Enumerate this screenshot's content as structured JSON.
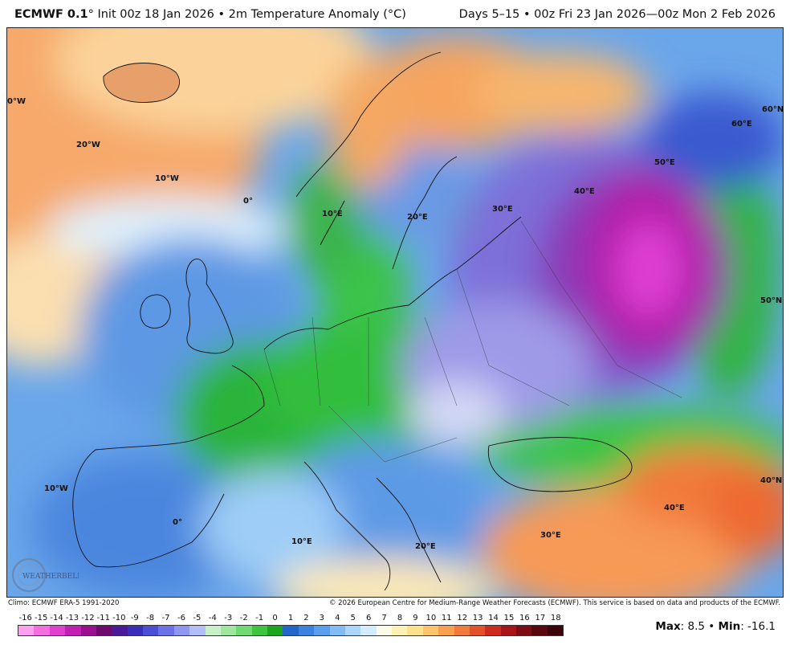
{
  "header": {
    "model": "ECMWF 0.1",
    "init_text": "° Init 00z 18 Jan 2026 • 2m Temperature Anomaly (°C)",
    "valid_text": "Days 5–15 • 00z Fri 23 Jan 2026—00z Mon 2 Feb 2026"
  },
  "map_labels": {
    "lon_0_w": "0°W",
    "lon_20_w": "20°W",
    "lon_10_w": "10°W",
    "lon_0": "0°",
    "lon_10_e": "10°E",
    "lon_20_e": "20°E",
    "lon_30_e": "30°E",
    "lon_40_e": "40°E",
    "lon_50_e": "50°E",
    "lon_60_e": "60°E",
    "lat_60_n": "60°N",
    "lat_50_n": "50°N",
    "lat_40_n": "40°N",
    "lon_10_w_south": "10°W",
    "lon_0_south": "0°",
    "lon_10_e_south": "10°E",
    "lon_20_e_south": "20°E",
    "lon_30_e_south": "30°E",
    "lon_40_e_south": "40°E"
  },
  "footer": {
    "climo": "Climo: ECMWF ERA-5 1991-2020",
    "copyright": "© 2026 European Centre for Medium-Range Weather Forecasts (ECMWF). This service is based on data and products of the ECMWF."
  },
  "colorbar": {
    "ticks": [
      "-16",
      "-15",
      "-14",
      "-13",
      "-12",
      "-11",
      "-10",
      "-9",
      "-8",
      "-7",
      "-6",
      "-5",
      "-4",
      "-3",
      "-2",
      "-1",
      "0",
      "1",
      "2",
      "3",
      "4",
      "5",
      "6",
      "7",
      "8",
      "9",
      "10",
      "11",
      "12",
      "13",
      "14",
      "15",
      "16",
      "17",
      "18"
    ],
    "colors": [
      "#ff9ff0",
      "#f56ee0",
      "#e03fcf",
      "#c21fb5",
      "#9a1090",
      "#6e0a6e",
      "#4a1a9a",
      "#3a2fb8",
      "#4c4ed4",
      "#6b71e6",
      "#8f97f0",
      "#b3bdf7",
      "#c8f0c8",
      "#9ee89e",
      "#6fda6f",
      "#3fc43f",
      "#1aa61a",
      "#2266cc",
      "#3a82e0",
      "#5a9fee",
      "#80bdf6",
      "#aad6fb",
      "#d4ecfd",
      "#fbfbe6",
      "#fdf2b4",
      "#fde08a",
      "#fcc46a",
      "#f9a04e",
      "#f27a3a",
      "#e4502a",
      "#cc2c1c",
      "#a8141a",
      "#7e0c14",
      "#5a070e",
      "#3c0408"
    ]
  },
  "stats": {
    "max_label": "Max",
    "max_value": ": 8.5 • ",
    "min_label": "Min",
    "min_value": ": -16.1"
  },
  "logo_text": "WEATHERBELL"
}
